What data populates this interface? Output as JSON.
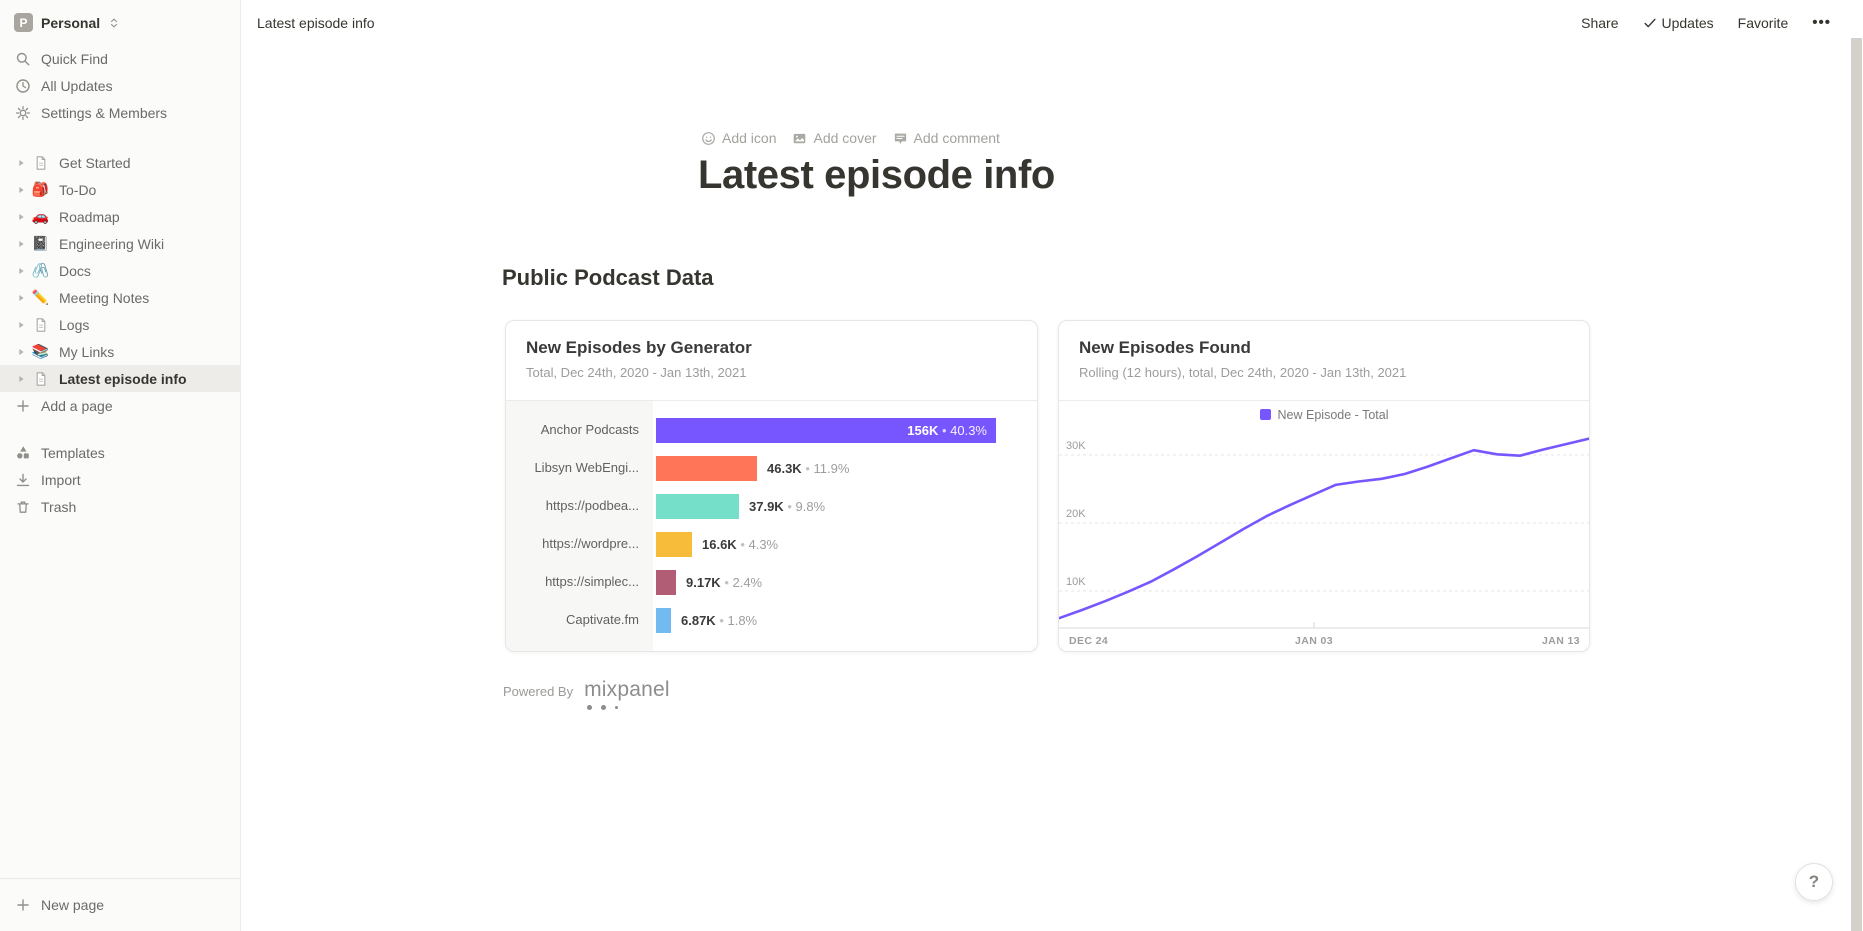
{
  "app": {
    "accent_color": "#7856FF"
  },
  "sidebar": {
    "workspace": {
      "initial": "P",
      "name": "Personal"
    },
    "top_items": [
      {
        "icon": "search-icon",
        "label": "Quick Find"
      },
      {
        "icon": "clock-icon",
        "label": "All Updates"
      },
      {
        "icon": "gear-icon",
        "label": "Settings & Members"
      }
    ],
    "pages": [
      {
        "icon": "page-icon",
        "label": "Get Started"
      },
      {
        "emoji": "🎒",
        "icon": "backpack-emoji-icon",
        "label": "To-Do"
      },
      {
        "emoji": "🚗",
        "icon": "car-emoji-icon",
        "label": "Roadmap"
      },
      {
        "emoji": "📓",
        "icon": "notebook-emoji-icon",
        "label": "Engineering Wiki"
      },
      {
        "emoji": "🖇️",
        "icon": "paperclip-emoji-icon",
        "label": "Docs"
      },
      {
        "emoji": "✏️",
        "icon": "pencil-emoji-icon",
        "label": "Meeting Notes"
      },
      {
        "icon": "page-icon",
        "label": "Logs"
      },
      {
        "emoji": "📚",
        "icon": "books-emoji-icon",
        "label": "My Links"
      },
      {
        "icon": "page-icon",
        "label": "Latest episode info",
        "selected": true
      }
    ],
    "add_page_label": "Add a page",
    "bottom_items": [
      {
        "icon": "templates-icon",
        "label": "Templates"
      },
      {
        "icon": "import-icon",
        "label": "Import"
      },
      {
        "icon": "trash-icon",
        "label": "Trash"
      }
    ],
    "new_page_label": "New page"
  },
  "topbar": {
    "breadcrumb": "Latest episode info",
    "share_label": "Share",
    "updates_icon": "check-icon",
    "updates_label": "Updates",
    "favorite_label": "Favorite",
    "more_label": "•••"
  },
  "page": {
    "controls": [
      {
        "icon": "smiley-icon",
        "label": "Add icon"
      },
      {
        "icon": "image-icon",
        "label": "Add cover"
      },
      {
        "icon": "comment-icon",
        "label": "Add comment"
      }
    ],
    "title": "Latest episode info",
    "section_heading": "Public Podcast Data",
    "powered_by_label": "Powered By",
    "mixpanel_label": "mixpanel"
  },
  "help_label": "?",
  "chart_data": [
    {
      "type": "bar",
      "orientation": "horizontal",
      "title": "New Episodes by Generator",
      "subtitle": "Total, Dec 24th, 2020 - Jan 13th, 2021",
      "categories": [
        "Anchor Podcasts",
        "Libsyn WebEngi...",
        "https://podbea...",
        "https://wordpre...",
        "https://simplec...",
        "Captivate.fm"
      ],
      "values": [
        156000,
        46300,
        37900,
        16600,
        9170,
        6870
      ],
      "value_labels": [
        "156K",
        "46.3K",
        "37.9K",
        "16.6K",
        "9.17K",
        "6.87K"
      ],
      "percent_labels": [
        "40.3%",
        "11.9%",
        "9.8%",
        "4.3%",
        "2.4%",
        "1.8%"
      ],
      "colors": [
        "#7856FF",
        "#FF7557",
        "#75DFC9",
        "#F8BC3B",
        "#B25D76",
        "#72BBF1"
      ],
      "xlim": [
        0,
        160000
      ],
      "grid": false
    },
    {
      "type": "line",
      "title": "New Episodes Found",
      "subtitle": "Rolling (12 hours), total, Dec 24th, 2020 - Jan 13th, 2021",
      "legend": [
        {
          "label": "New Episode - Total",
          "color": "#7856FF"
        }
      ],
      "legend_position": "top",
      "x_ticks": [
        "DEC 24",
        "JAN 03",
        "JAN 13"
      ],
      "y_ticks": [
        {
          "label": "10K",
          "value": 10000
        },
        {
          "label": "20K",
          "value": 20000
        },
        {
          "label": "30K",
          "value": 30000
        }
      ],
      "ylim": [
        4500,
        34400
      ],
      "grid": "dashed-horizontal",
      "values": [
        6000,
        7200,
        8500,
        9900,
        11400,
        13200,
        15100,
        17100,
        19100,
        21000,
        22600,
        24100,
        25600,
        26100,
        26500,
        27200,
        28300,
        29500,
        30700,
        30100,
        29900,
        30800,
        31600,
        32400
      ]
    }
  ]
}
